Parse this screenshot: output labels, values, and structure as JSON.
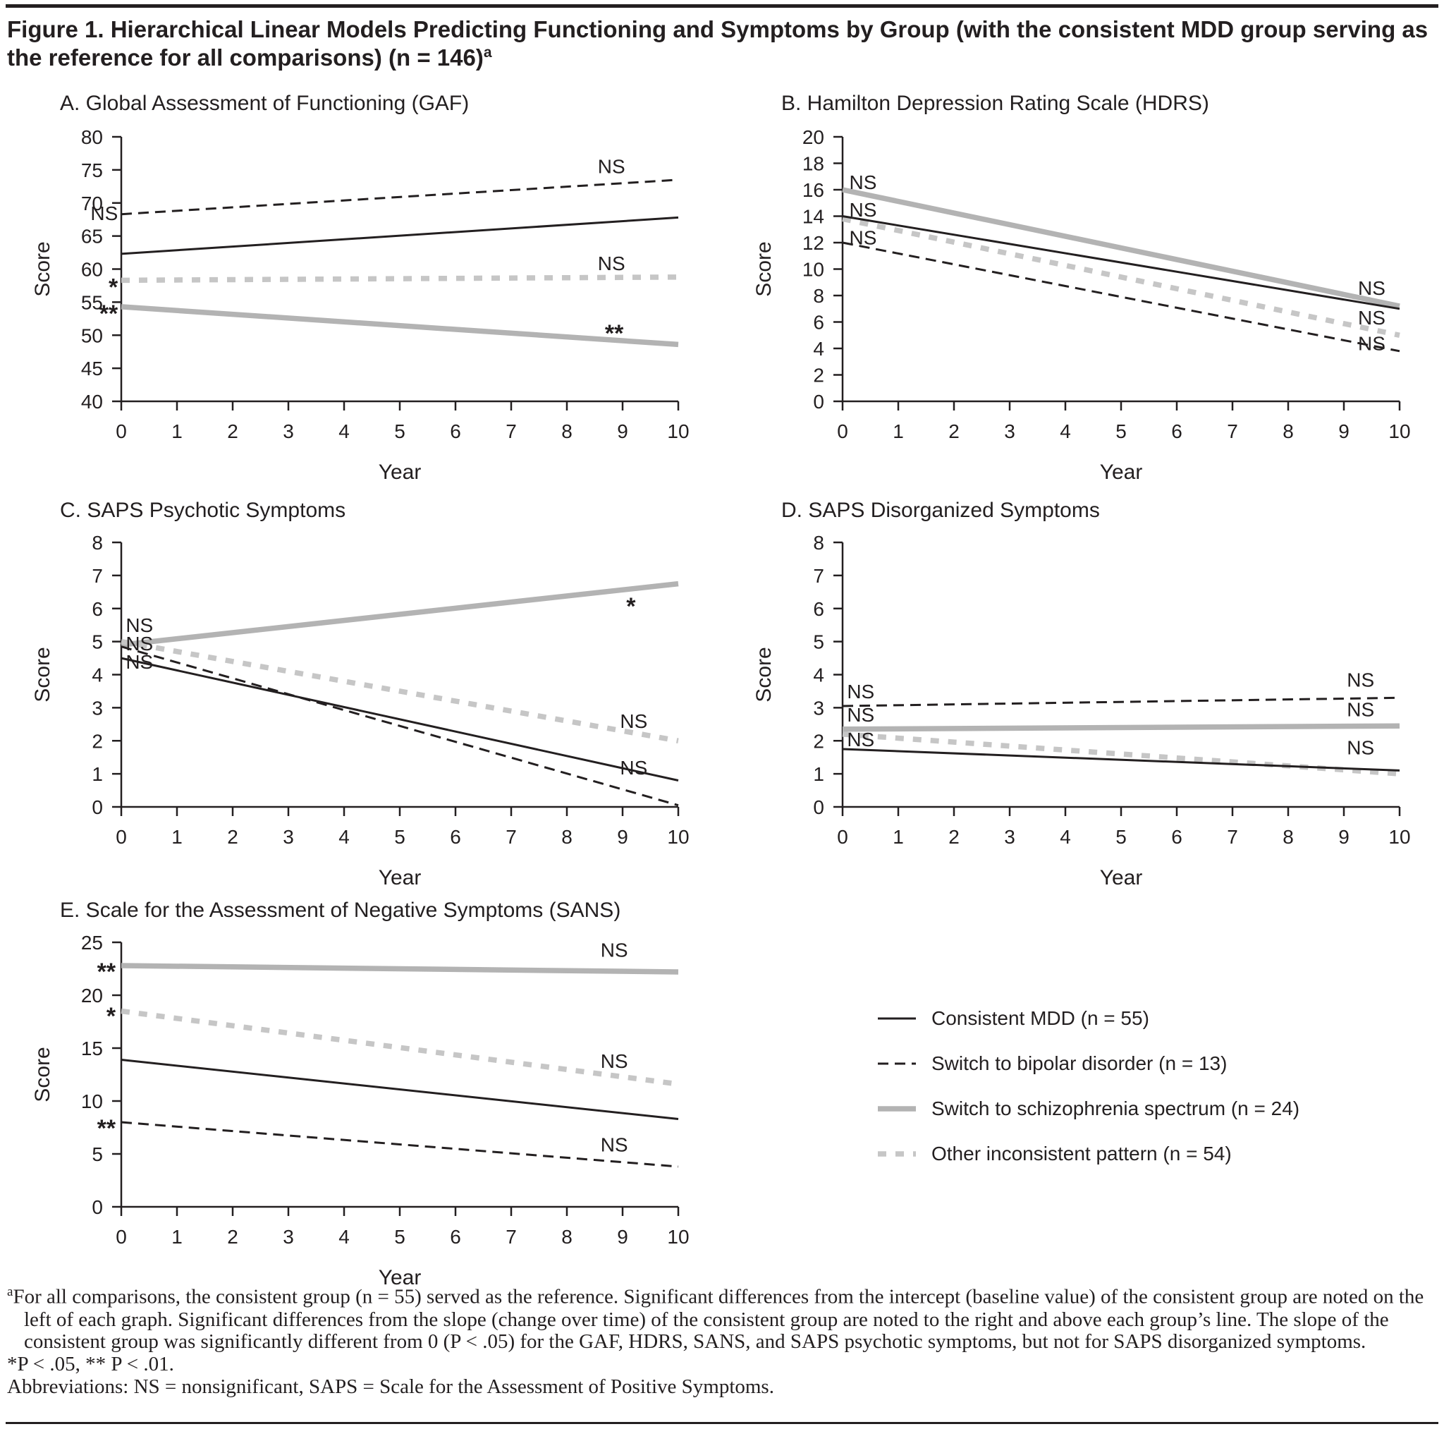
{
  "figure": {
    "title": "Figure 1. Hierarchical Linear Models Predicting Functioning and Symptoms by Group (with the consistent MDD group serving as the reference for all comparisons) (n = 146)",
    "title_sup": "a"
  },
  "colors": {
    "ink": "#231f20",
    "gray_solid": "#b3b3b3",
    "gray_dashed": "#c6c6c6"
  },
  "styles": {
    "solid-black": {
      "color": "#231f20",
      "width": 3,
      "dash": ""
    },
    "dashed-black": {
      "color": "#231f20",
      "width": 3,
      "dash": "15 9"
    },
    "solid-gray": {
      "color": "#b3b3b3",
      "width": 7.5,
      "dash": ""
    },
    "dashed-gray": {
      "color": "#c6c6c6",
      "width": 7.5,
      "dash": "12 13"
    }
  },
  "legend": {
    "items": [
      {
        "label": "Consistent MDD (n = 55)",
        "style": "solid-black"
      },
      {
        "label": "Switch to bipolar disorder (n = 13)",
        "style": "dashed-black"
      },
      {
        "label": "Switch to schizophrenia spectrum (n = 24)",
        "style": "solid-gray"
      },
      {
        "label": "Other inconsistent pattern (n = 54)",
        "style": "dashed-gray"
      }
    ]
  },
  "chart_data": [
    {
      "id": "A",
      "type": "line",
      "title": "A. Global Assessment of Functioning (GAF)",
      "xlabel": "Year",
      "ylabel": "Score",
      "xlim": [
        0,
        10
      ],
      "ylim": [
        40,
        80
      ],
      "xticks": [
        0,
        1,
        2,
        3,
        4,
        5,
        6,
        7,
        8,
        9,
        10
      ],
      "yticks": [
        40,
        45,
        50,
        55,
        60,
        65,
        70,
        75,
        80
      ],
      "series": [
        {
          "name": "Switch to schizophrenia spectrum (n = 24)",
          "style": "solid-gray",
          "x": [
            0,
            10
          ],
          "y": [
            54.3,
            48.6
          ]
        },
        {
          "name": "Other inconsistent pattern (n = 54)",
          "style": "dashed-gray",
          "x": [
            0,
            10
          ],
          "y": [
            58.3,
            58.8
          ]
        },
        {
          "name": "Switch to bipolar disorder (n = 13)",
          "style": "dashed-black",
          "x": [
            0,
            10
          ],
          "y": [
            68.3,
            73.5
          ]
        },
        {
          "name": "Consistent MDD (n = 55)",
          "style": "solid-black",
          "x": [
            0,
            10
          ],
          "y": [
            62.3,
            67.8
          ]
        }
      ],
      "annotations": [
        {
          "text": "NS",
          "x": -0.06,
          "y": 68.5,
          "anchor": "end"
        },
        {
          "text": "*",
          "x": -0.06,
          "y": 58.2,
          "anchor": "end"
        },
        {
          "text": "**",
          "x": -0.06,
          "y": 54.2,
          "anchor": "end"
        },
        {
          "text": "NS",
          "x": 8.8,
          "y": 75.6,
          "anchor": "middle"
        },
        {
          "text": "NS",
          "x": 8.8,
          "y": 60.9,
          "anchor": "middle"
        },
        {
          "text": "**",
          "x": 8.85,
          "y": 51.2,
          "anchor": "middle"
        }
      ]
    },
    {
      "id": "B",
      "type": "line",
      "title": "B. Hamilton Depression Rating Scale (HDRS)",
      "xlabel": "Year",
      "ylabel": "Score",
      "xlim": [
        0,
        10
      ],
      "ylim": [
        0,
        20
      ],
      "xticks": [
        0,
        1,
        2,
        3,
        4,
        5,
        6,
        7,
        8,
        9,
        10
      ],
      "yticks": [
        0,
        2,
        4,
        6,
        8,
        10,
        12,
        14,
        16,
        18,
        20
      ],
      "series": [
        {
          "name": "Switch to schizophrenia spectrum (n = 24)",
          "style": "solid-gray",
          "x": [
            0,
            10
          ],
          "y": [
            16.0,
            7.2
          ]
        },
        {
          "name": "Other inconsistent pattern (n = 54)",
          "style": "dashed-gray",
          "x": [
            0,
            10
          ],
          "y": [
            13.8,
            5.0
          ]
        },
        {
          "name": "Switch to bipolar disorder (n = 13)",
          "style": "dashed-black",
          "x": [
            0,
            10
          ],
          "y": [
            12.0,
            3.8
          ]
        },
        {
          "name": "Consistent MDD (n = 55)",
          "style": "solid-black",
          "x": [
            0,
            10
          ],
          "y": [
            14.0,
            7.0
          ]
        }
      ],
      "annotations": [
        {
          "text": "NS",
          "x": 0.12,
          "y": 16.6,
          "anchor": "start"
        },
        {
          "text": "NS",
          "x": 0.12,
          "y": 14.5,
          "anchor": "start"
        },
        {
          "text": "NS",
          "x": 0.12,
          "y": 12.4,
          "anchor": "start"
        },
        {
          "text": "NS",
          "x": 9.5,
          "y": 8.6,
          "anchor": "middle"
        },
        {
          "text": "NS",
          "x": 9.5,
          "y": 6.35,
          "anchor": "middle"
        },
        {
          "text": "NS",
          "x": 9.5,
          "y": 4.4,
          "anchor": "middle"
        }
      ]
    },
    {
      "id": "C",
      "type": "line",
      "title": "C. SAPS Psychotic Symptoms",
      "xlabel": "Year",
      "ylabel": "Score",
      "xlim": [
        0,
        10
      ],
      "ylim": [
        0,
        8
      ],
      "xticks": [
        0,
        1,
        2,
        3,
        4,
        5,
        6,
        7,
        8,
        9,
        10
      ],
      "yticks": [
        0,
        1,
        2,
        3,
        4,
        5,
        6,
        7,
        8
      ],
      "series": [
        {
          "name": "Switch to schizophrenia spectrum (n = 24)",
          "style": "solid-gray",
          "x": [
            0,
            10
          ],
          "y": [
            4.9,
            6.75
          ]
        },
        {
          "name": "Other inconsistent pattern (n = 54)",
          "style": "dashed-gray",
          "x": [
            0,
            10
          ],
          "y": [
            5.0,
            2.0
          ]
        },
        {
          "name": "Switch to bipolar disorder (n = 13)",
          "style": "dashed-black",
          "x": [
            0,
            10
          ],
          "y": [
            4.85,
            0.05
          ]
        },
        {
          "name": "Consistent MDD (n = 55)",
          "style": "solid-black",
          "x": [
            0,
            10
          ],
          "y": [
            4.5,
            0.8
          ]
        }
      ],
      "annotations": [
        {
          "text": "NS",
          "x": 0.08,
          "y": 5.5,
          "anchor": "start"
        },
        {
          "text": "NS",
          "x": 0.08,
          "y": 4.95,
          "anchor": "start"
        },
        {
          "text": "NS",
          "x": 0.08,
          "y": 4.4,
          "anchor": "start"
        },
        {
          "text": "*",
          "x": 9.15,
          "y": 6.25,
          "anchor": "middle"
        },
        {
          "text": "NS",
          "x": 9.2,
          "y": 2.6,
          "anchor": "middle"
        },
        {
          "text": "NS",
          "x": 9.2,
          "y": 1.2,
          "anchor": "middle"
        }
      ]
    },
    {
      "id": "D",
      "type": "line",
      "title": "D. SAPS Disorganized Symptoms",
      "xlabel": "Year",
      "ylabel": "Score",
      "xlim": [
        0,
        10
      ],
      "ylim": [
        0,
        8
      ],
      "xticks": [
        0,
        1,
        2,
        3,
        4,
        5,
        6,
        7,
        8,
        9,
        10
      ],
      "yticks": [
        0,
        1,
        2,
        3,
        4,
        5,
        6,
        7,
        8
      ],
      "series": [
        {
          "name": "Switch to schizophrenia spectrum (n = 24)",
          "style": "solid-gray",
          "x": [
            0,
            10
          ],
          "y": [
            2.35,
            2.45
          ]
        },
        {
          "name": "Other inconsistent pattern (n = 54)",
          "style": "dashed-gray",
          "x": [
            0,
            10
          ],
          "y": [
            2.2,
            1.0
          ]
        },
        {
          "name": "Switch to bipolar disorder (n = 13)",
          "style": "dashed-black",
          "x": [
            0,
            10
          ],
          "y": [
            3.05,
            3.3
          ]
        },
        {
          "name": "Consistent MDD (n = 55)",
          "style": "solid-black",
          "x": [
            0,
            10
          ],
          "y": [
            1.75,
            1.1
          ]
        }
      ],
      "annotations": [
        {
          "text": "NS",
          "x": 0.08,
          "y": 3.5,
          "anchor": "start"
        },
        {
          "text": "NS",
          "x": 0.08,
          "y": 2.8,
          "anchor": "start"
        },
        {
          "text": "NS",
          "x": 0.08,
          "y": 2.05,
          "anchor": "start"
        },
        {
          "text": "NS",
          "x": 9.3,
          "y": 3.85,
          "anchor": "middle"
        },
        {
          "text": "NS",
          "x": 9.3,
          "y": 2.95,
          "anchor": "middle"
        },
        {
          "text": "NS",
          "x": 9.3,
          "y": 1.8,
          "anchor": "middle"
        }
      ]
    },
    {
      "id": "E",
      "type": "line",
      "title": "E. Scale for the Assessment of Negative Symptoms (SANS)",
      "xlabel": "Year",
      "ylabel": "Score",
      "xlim": [
        0,
        10
      ],
      "ylim": [
        0,
        25
      ],
      "xticks": [
        0,
        1,
        2,
        3,
        4,
        5,
        6,
        7,
        8,
        9,
        10
      ],
      "yticks": [
        0,
        5,
        10,
        15,
        20,
        25
      ],
      "series": [
        {
          "name": "Switch to schizophrenia spectrum (n = 24)",
          "style": "solid-gray",
          "x": [
            0,
            10
          ],
          "y": [
            22.8,
            22.2
          ]
        },
        {
          "name": "Other inconsistent pattern (n = 54)",
          "style": "dashed-gray",
          "x": [
            0,
            10
          ],
          "y": [
            18.5,
            11.6
          ]
        },
        {
          "name": "Switch to bipolar disorder (n = 13)",
          "style": "dashed-black",
          "x": [
            0,
            10
          ],
          "y": [
            8.0,
            3.8
          ]
        },
        {
          "name": "Consistent MDD (n = 55)",
          "style": "solid-black",
          "x": [
            0,
            10
          ],
          "y": [
            13.9,
            8.3
          ]
        }
      ],
      "annotations": [
        {
          "text": "**",
          "x": -0.1,
          "y": 22.8,
          "anchor": "end"
        },
        {
          "text": "*",
          "x": -0.1,
          "y": 18.6,
          "anchor": "end"
        },
        {
          "text": "**",
          "x": -0.1,
          "y": 8.0,
          "anchor": "end"
        },
        {
          "text": "NS",
          "x": 8.85,
          "y": 24.3,
          "anchor": "middle"
        },
        {
          "text": "NS",
          "x": 8.85,
          "y": 13.8,
          "anchor": "middle"
        },
        {
          "text": "NS",
          "x": 8.85,
          "y": 5.9,
          "anchor": "middle"
        }
      ]
    }
  ],
  "footnotes": {
    "note_a_sup": "a",
    "note_a": "For all comparisons, the consistent group (n = 55) served as the reference. Significant differences from the intercept (baseline value) of the consistent group are noted on the left of each graph. Significant differences from the slope (change over time) of the consistent group are noted to the right and above each group’s line. The slope of the consistent group was significantly different from 0 (P < .05) for the GAF, HDRS, SANS, and SAPS psychotic symptoms, but not for SAPS disorganized symptoms.",
    "significance": "*P < .05, ** P < .01.",
    "abbreviations": "Abbreviations: NS = nonsignificant, SAPS = Scale for the Assessment of Positive Symptoms."
  }
}
